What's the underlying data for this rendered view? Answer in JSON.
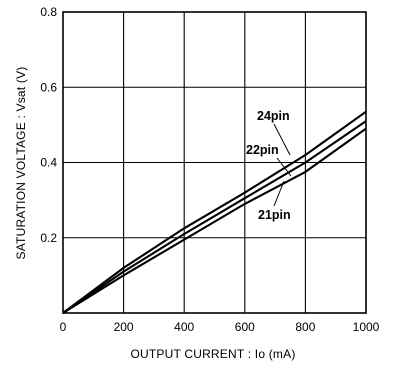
{
  "chart_data": {
    "type": "line",
    "xlabel": "OUTPUT  CURRENT : Io  (mA)",
    "ylabel": "SATURATION VOLTAGE : Vsat  (V)",
    "xlim": [
      0,
      1000
    ],
    "ylim": [
      0,
      0.8
    ],
    "x_ticks": [
      0,
      200,
      400,
      600,
      800,
      1000
    ],
    "y_ticks": [
      0,
      0.2,
      0.4,
      0.6,
      0.8
    ],
    "x_tick_labels": [
      "0",
      "200",
      "400",
      "600",
      "800",
      "1000"
    ],
    "y_tick_labels": [
      "0",
      "0.2",
      "0.4",
      "0.6",
      "0.8"
    ],
    "grid": true,
    "series": [
      {
        "name": "24pin",
        "x": [
          0,
          200,
          400,
          600,
          800,
          1000
        ],
        "y": [
          0,
          0.12,
          0.225,
          0.32,
          0.42,
          0.535
        ]
      },
      {
        "name": "22pin",
        "x": [
          0,
          200,
          400,
          600,
          800,
          1000
        ],
        "y": [
          0,
          0.11,
          0.21,
          0.305,
          0.4,
          0.51
        ]
      },
      {
        "name": "21pin",
        "x": [
          0,
          200,
          400,
          600,
          800,
          1000
        ],
        "y": [
          0,
          0.1,
          0.195,
          0.29,
          0.375,
          0.49
        ]
      }
    ]
  }
}
